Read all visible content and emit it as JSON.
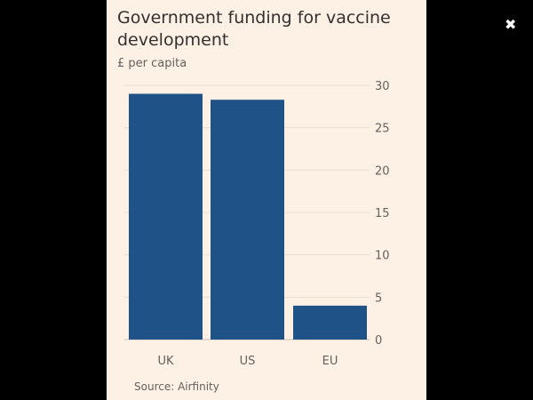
{
  "close_icon": "close-icon",
  "chart_data": {
    "type": "bar",
    "title": "Government funding for vaccine development",
    "subtitle": "£ per capita",
    "source": "Source: Airfinity",
    "categories": [
      "UK",
      "US",
      "EU"
    ],
    "values": [
      29.0,
      28.3,
      4.0
    ],
    "ylim": [
      0,
      30
    ],
    "yticks": [
      "0",
      "5",
      "10",
      "15",
      "20",
      "25",
      "30"
    ],
    "grid": true,
    "bar_color": "#1f5287",
    "background": "#fdf1e6"
  }
}
